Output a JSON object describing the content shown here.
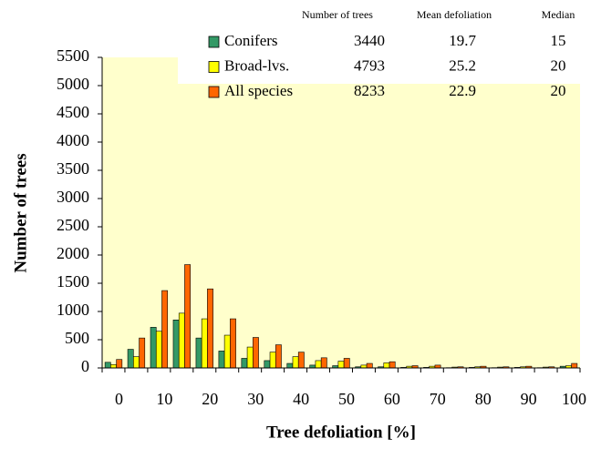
{
  "chart_data": {
    "type": "bar",
    "x_label": "Tree defoliation [%]",
    "y_label": "Number of trees",
    "categories": [
      "0",
      null,
      "10",
      null,
      "20",
      null,
      "30",
      null,
      "40",
      null,
      "50",
      null,
      "60",
      null,
      "70",
      null,
      "80",
      null,
      "90",
      null,
      "100"
    ],
    "series": [
      {
        "name": "Conifers",
        "color": "#339966",
        "values": [
          100,
          330,
          720,
          850,
          530,
          300,
          170,
          130,
          80,
          50,
          40,
          20,
          20,
          10,
          10,
          5,
          10,
          5,
          10,
          5,
          30
        ]
      },
      {
        "name": "Broad-lvs.",
        "color": "#ffff00",
        "values": [
          60,
          200,
          650,
          970,
          870,
          580,
          370,
          280,
          200,
          130,
          120,
          50,
          90,
          30,
          30,
          15,
          20,
          15,
          20,
          15,
          40
        ]
      },
      {
        "name": "All species",
        "color": "#ff6600",
        "values": [
          150,
          530,
          1370,
          1830,
          1400,
          870,
          540,
          410,
          280,
          180,
          170,
          80,
          110,
          40,
          50,
          20,
          30,
          20,
          30,
          20,
          80
        ]
      }
    ],
    "ylim": [
      0,
      5500
    ],
    "yticks": [
      0,
      500,
      1000,
      1500,
      2000,
      2500,
      3000,
      3500,
      4000,
      4500,
      5000,
      5500
    ],
    "grid": false,
    "plot_background": "#ffffcc",
    "legend_table": {
      "columns": [
        "Number of trees",
        "Mean defoliation",
        "Median"
      ],
      "rows": [
        [
          3440,
          19.7,
          15
        ],
        [
          4793,
          25.2,
          20
        ],
        [
          8233,
          22.9,
          20
        ]
      ]
    }
  }
}
